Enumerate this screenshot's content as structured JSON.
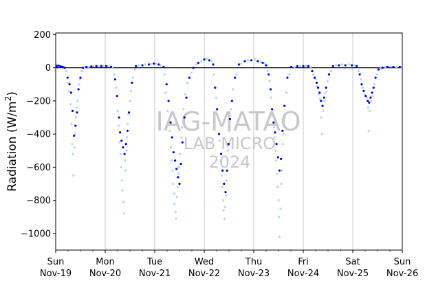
{
  "chart_data": {
    "type": "scatter",
    "ylabel_main": "Radiation (W/m",
    "ylabel_sup": "2",
    "ylabel_close": ")",
    "ylim": [
      -1100,
      210
    ],
    "xlim": [
      0,
      7
    ],
    "yticks": [
      200,
      0,
      -200,
      -400,
      -600,
      -800,
      -1000
    ],
    "ytick_labels": [
      "200",
      "0",
      "−200",
      "−400",
      "−600",
      "−800",
      "−1000"
    ],
    "xticks": [
      {
        "x": 0,
        "day": "Sun",
        "date": "Nov-19"
      },
      {
        "x": 1,
        "day": "Mon",
        "date": "Nov-20"
      },
      {
        "x": 2,
        "day": "Tue",
        "date": "Nov-21"
      },
      {
        "x": 3,
        "day": "Wed",
        "date": "Nov-22"
      },
      {
        "x": 4,
        "day": "Thu",
        "date": "Nov-23"
      },
      {
        "x": 5,
        "day": "Fri",
        "date": "Nov-24"
      },
      {
        "x": 6,
        "day": "Sat",
        "date": "Nov-25"
      },
      {
        "x": 7,
        "day": "Sun",
        "date": "Nov-26"
      }
    ],
    "grid": "vertical",
    "zero_line": true,
    "watermark": {
      "line1": "IAG-MATAO",
      "line2": "LAB MICRO",
      "line3": "2024"
    },
    "colors": {
      "series_dark": "#0000ee",
      "series_light": "#add8e6",
      "grid": "#c8c8c8",
      "zero_line": "#000000",
      "watermark": "#c8c8c8"
    },
    "series": [
      {
        "values": [
          [
            0.02,
            10
          ],
          [
            0.06,
            12
          ],
          [
            0.1,
            8
          ],
          [
            0.14,
            5
          ],
          [
            0.18,
            0
          ],
          [
            0.24,
            -60
          ],
          [
            0.28,
            -100
          ],
          [
            0.31,
            -150
          ],
          [
            0.34,
            -260
          ],
          [
            0.37,
            -410
          ],
          [
            0.4,
            -350
          ],
          [
            0.43,
            -270
          ],
          [
            0.46,
            -130
          ],
          [
            0.5,
            -60
          ],
          [
            0.55,
            0
          ],
          [
            0.62,
            5
          ],
          [
            0.72,
            8
          ],
          [
            0.82,
            10
          ],
          [
            0.92,
            10
          ],
          [
            1.02,
            10
          ],
          [
            1.12,
            5
          ],
          [
            1.2,
            -70
          ],
          [
            1.24,
            -170
          ],
          [
            1.28,
            -300
          ],
          [
            1.3,
            -390
          ],
          [
            1.33,
            -440
          ],
          [
            1.36,
            -480
          ],
          [
            1.39,
            -520
          ],
          [
            1.42,
            -460
          ],
          [
            1.45,
            -380
          ],
          [
            1.48,
            -270
          ],
          [
            1.54,
            -90
          ],
          [
            1.62,
            10
          ],
          [
            1.75,
            15
          ],
          [
            1.88,
            20
          ],
          [
            1.98,
            25
          ],
          [
            2.08,
            20
          ],
          [
            2.18,
            5
          ],
          [
            2.24,
            -100
          ],
          [
            2.28,
            -200
          ],
          [
            2.32,
            -330
          ],
          [
            2.35,
            -420
          ],
          [
            2.38,
            -510
          ],
          [
            2.41,
            -560
          ],
          [
            2.44,
            -610
          ],
          [
            2.47,
            -660
          ],
          [
            2.5,
            -700
          ],
          [
            2.53,
            -580
          ],
          [
            2.56,
            -450
          ],
          [
            2.6,
            -300
          ],
          [
            2.64,
            -180
          ],
          [
            2.7,
            -60
          ],
          [
            2.78,
            0
          ],
          [
            2.88,
            30
          ],
          [
            3.0,
            50
          ],
          [
            3.1,
            45
          ],
          [
            3.18,
            20
          ],
          [
            3.22,
            -120
          ],
          [
            3.26,
            -250
          ],
          [
            3.3,
            -400
          ],
          [
            3.34,
            -520
          ],
          [
            3.37,
            -620
          ],
          [
            3.4,
            -700
          ],
          [
            3.43,
            -750
          ],
          [
            3.46,
            -620
          ],
          [
            3.49,
            -460
          ],
          [
            3.52,
            -310
          ],
          [
            3.56,
            -200
          ],
          [
            3.62,
            -60
          ],
          [
            3.7,
            20
          ],
          [
            3.82,
            40
          ],
          [
            3.95,
            45
          ],
          [
            4.08,
            40
          ],
          [
            4.18,
            30
          ],
          [
            4.25,
            15
          ],
          [
            4.3,
            -40
          ],
          [
            4.34,
            -130
          ],
          [
            4.37,
            -250
          ],
          [
            4.4,
            -330
          ],
          [
            4.43,
            -390
          ],
          [
            4.46,
            -460
          ],
          [
            4.49,
            -540
          ],
          [
            4.52,
            -620
          ],
          [
            4.55,
            -550
          ],
          [
            4.58,
            -380
          ],
          [
            4.62,
            -230
          ],
          [
            4.68,
            -60
          ],
          [
            4.76,
            5
          ],
          [
            4.88,
            10
          ],
          [
            5.0,
            10
          ],
          [
            5.1,
            10
          ],
          [
            5.18,
            -20
          ],
          [
            5.23,
            -60
          ],
          [
            5.27,
            -90
          ],
          [
            5.3,
            -120
          ],
          [
            5.33,
            -150
          ],
          [
            5.36,
            -200
          ],
          [
            5.39,
            -230
          ],
          [
            5.42,
            -180
          ],
          [
            5.46,
            -120
          ],
          [
            5.52,
            -40
          ],
          [
            5.6,
            10
          ],
          [
            5.72,
            15
          ],
          [
            5.85,
            15
          ],
          [
            5.98,
            15
          ],
          [
            6.08,
            10
          ],
          [
            6.14,
            -40
          ],
          [
            6.18,
            -100
          ],
          [
            6.22,
            -140
          ],
          [
            6.26,
            -170
          ],
          [
            6.3,
            -200
          ],
          [
            6.33,
            -210
          ],
          [
            6.36,
            -180
          ],
          [
            6.39,
            -150
          ],
          [
            6.42,
            -120
          ],
          [
            6.46,
            -60
          ],
          [
            6.52,
            -10
          ],
          [
            6.6,
            0
          ],
          [
            6.7,
            5
          ],
          [
            6.82,
            5
          ],
          [
            6.95,
            5
          ]
        ]
      },
      {
        "values": [
          [
            0.01,
            20
          ],
          [
            0.05,
            15
          ],
          [
            0.09,
            10
          ],
          [
            0.13,
            8
          ],
          [
            0.17,
            3
          ],
          [
            0.21,
            -20
          ],
          [
            0.25,
            -90
          ],
          [
            0.27,
            -140
          ],
          [
            0.3,
            -220
          ],
          [
            0.32,
            -340
          ],
          [
            0.33,
            -460
          ],
          [
            0.35,
            -520
          ],
          [
            0.36,
            -650
          ],
          [
            0.38,
            -480
          ],
          [
            0.39,
            -400
          ],
          [
            0.41,
            -300
          ],
          [
            0.42,
            -240
          ],
          [
            0.44,
            -200
          ],
          [
            0.47,
            -100
          ],
          [
            0.49,
            -70
          ],
          [
            0.53,
            -20
          ],
          [
            0.58,
            0
          ],
          [
            0.66,
            5
          ],
          [
            0.76,
            10
          ],
          [
            0.86,
            10
          ],
          [
            0.96,
            10
          ],
          [
            1.06,
            10
          ],
          [
            1.14,
            0
          ],
          [
            1.18,
            -40
          ],
          [
            1.22,
            -120
          ],
          [
            1.25,
            -260
          ],
          [
            1.27,
            -350
          ],
          [
            1.29,
            -450
          ],
          [
            1.31,
            -520
          ],
          [
            1.32,
            -600
          ],
          [
            1.34,
            -680
          ],
          [
            1.35,
            -740
          ],
          [
            1.37,
            -810
          ],
          [
            1.38,
            -880
          ],
          [
            1.4,
            -560
          ],
          [
            1.41,
            -620
          ],
          [
            1.43,
            -500
          ],
          [
            1.44,
            -420
          ],
          [
            1.46,
            -340
          ],
          [
            1.47,
            -280
          ],
          [
            1.5,
            -200
          ],
          [
            1.52,
            -140
          ],
          [
            1.56,
            -60
          ],
          [
            1.6,
            -10
          ],
          [
            1.68,
            15
          ],
          [
            1.8,
            20
          ],
          [
            1.92,
            22
          ],
          [
            2.02,
            25
          ],
          [
            2.12,
            15
          ],
          [
            2.2,
            -40
          ],
          [
            2.22,
            -150
          ],
          [
            2.26,
            -260
          ],
          [
            2.3,
            -380
          ],
          [
            2.33,
            -480
          ],
          [
            2.34,
            -560
          ],
          [
            2.36,
            -620
          ],
          [
            2.37,
            -700
          ],
          [
            2.39,
            -760
          ],
          [
            2.4,
            -820
          ],
          [
            2.42,
            -870
          ],
          [
            2.43,
            -910
          ],
          [
            2.45,
            -780
          ],
          [
            2.46,
            -720
          ],
          [
            2.48,
            -640
          ],
          [
            2.49,
            -600
          ],
          [
            2.51,
            -520
          ],
          [
            2.54,
            -420
          ],
          [
            2.55,
            -360
          ],
          [
            2.58,
            -250
          ],
          [
            2.62,
            -160
          ],
          [
            2.66,
            -90
          ],
          [
            2.74,
            -30
          ],
          [
            2.84,
            20
          ],
          [
            2.94,
            40
          ],
          [
            3.05,
            55
          ],
          [
            3.14,
            40
          ],
          [
            3.2,
            -40
          ],
          [
            3.24,
            -180
          ],
          [
            3.28,
            -300
          ],
          [
            3.31,
            -440
          ],
          [
            3.33,
            -560
          ],
          [
            3.35,
            -650
          ],
          [
            3.36,
            -720
          ],
          [
            3.38,
            -800
          ],
          [
            3.39,
            -860
          ],
          [
            3.41,
            -910
          ],
          [
            3.42,
            -840
          ],
          [
            3.44,
            -770
          ],
          [
            3.45,
            -680
          ],
          [
            3.47,
            -560
          ],
          [
            3.48,
            -500
          ],
          [
            3.5,
            -380
          ],
          [
            3.51,
            -320
          ],
          [
            3.54,
            -250
          ],
          [
            3.58,
            -130
          ],
          [
            3.65,
            -40
          ],
          [
            3.75,
            25
          ],
          [
            3.88,
            45
          ],
          [
            4.02,
            50
          ],
          [
            4.14,
            35
          ],
          [
            4.22,
            25
          ],
          [
            4.28,
            -20
          ],
          [
            4.32,
            -80
          ],
          [
            4.35,
            -180
          ],
          [
            4.38,
            -290
          ],
          [
            4.41,
            -360
          ],
          [
            4.42,
            -420
          ],
          [
            4.44,
            -500
          ],
          [
            4.45,
            -560
          ],
          [
            4.47,
            -640
          ],
          [
            4.48,
            -720
          ],
          [
            4.5,
            -800
          ],
          [
            4.51,
            -900
          ],
          [
            4.52,
            -1020
          ],
          [
            4.54,
            -850
          ],
          [
            4.56,
            -700
          ],
          [
            4.57,
            -620
          ],
          [
            4.59,
            -460
          ],
          [
            4.6,
            -400
          ],
          [
            4.63,
            -300
          ],
          [
            4.66,
            -150
          ],
          [
            4.72,
            -40
          ],
          [
            4.82,
            5
          ],
          [
            4.94,
            10
          ],
          [
            5.05,
            12
          ],
          [
            5.15,
            5
          ],
          [
            5.2,
            -40
          ],
          [
            5.25,
            -70
          ],
          [
            5.28,
            -110
          ],
          [
            5.31,
            -160
          ],
          [
            5.34,
            -190
          ],
          [
            5.36,
            -300
          ],
          [
            5.38,
            -400
          ],
          [
            5.4,
            -260
          ],
          [
            5.43,
            -200
          ],
          [
            5.45,
            -150
          ],
          [
            5.49,
            -80
          ],
          [
            5.56,
            -20
          ],
          [
            5.66,
            15
          ],
          [
            5.78,
            20
          ],
          [
            5.92,
            20
          ],
          [
            6.04,
            15
          ],
          [
            6.12,
            -20
          ],
          [
            6.16,
            -70
          ],
          [
            6.2,
            -120
          ],
          [
            6.24,
            -160
          ],
          [
            6.28,
            -180
          ],
          [
            6.31,
            -240
          ],
          [
            6.32,
            -380
          ],
          [
            6.34,
            -260
          ],
          [
            6.37,
            -200
          ],
          [
            6.4,
            -170
          ],
          [
            6.44,
            -100
          ],
          [
            6.49,
            -40
          ],
          [
            6.56,
            -5
          ],
          [
            6.66,
            5
          ],
          [
            6.76,
            8
          ],
          [
            6.88,
            5
          ],
          [
            6.98,
            5
          ]
        ]
      }
    ]
  }
}
